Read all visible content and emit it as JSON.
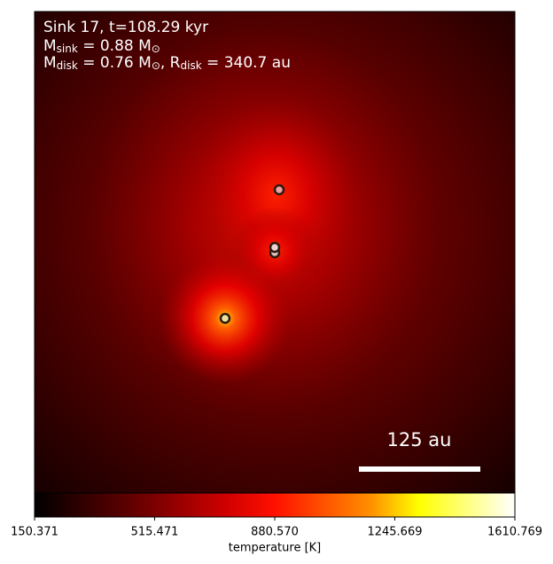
{
  "chart_data": {
    "type": "image",
    "annotation_lines": [
      [
        "Sink 17, t=108.29 kyr"
      ],
      [
        "M",
        "sink",
        " = 0.88 M",
        "⊙"
      ],
      [
        "M",
        "disk",
        " = 0.76 M",
        "⊙",
        ", R",
        "disk",
        " = 340.7 au"
      ]
    ],
    "scale_bar_label": "125 au",
    "colorbar_label": "temperature [K]",
    "clim": [
      150.371,
      1610.769
    ],
    "cticks": [
      150.371,
      515.471,
      {
        "value": 880.57,
        "label": "880.570"
      },
      1245.669,
      1610.769
    ]
  }
}
